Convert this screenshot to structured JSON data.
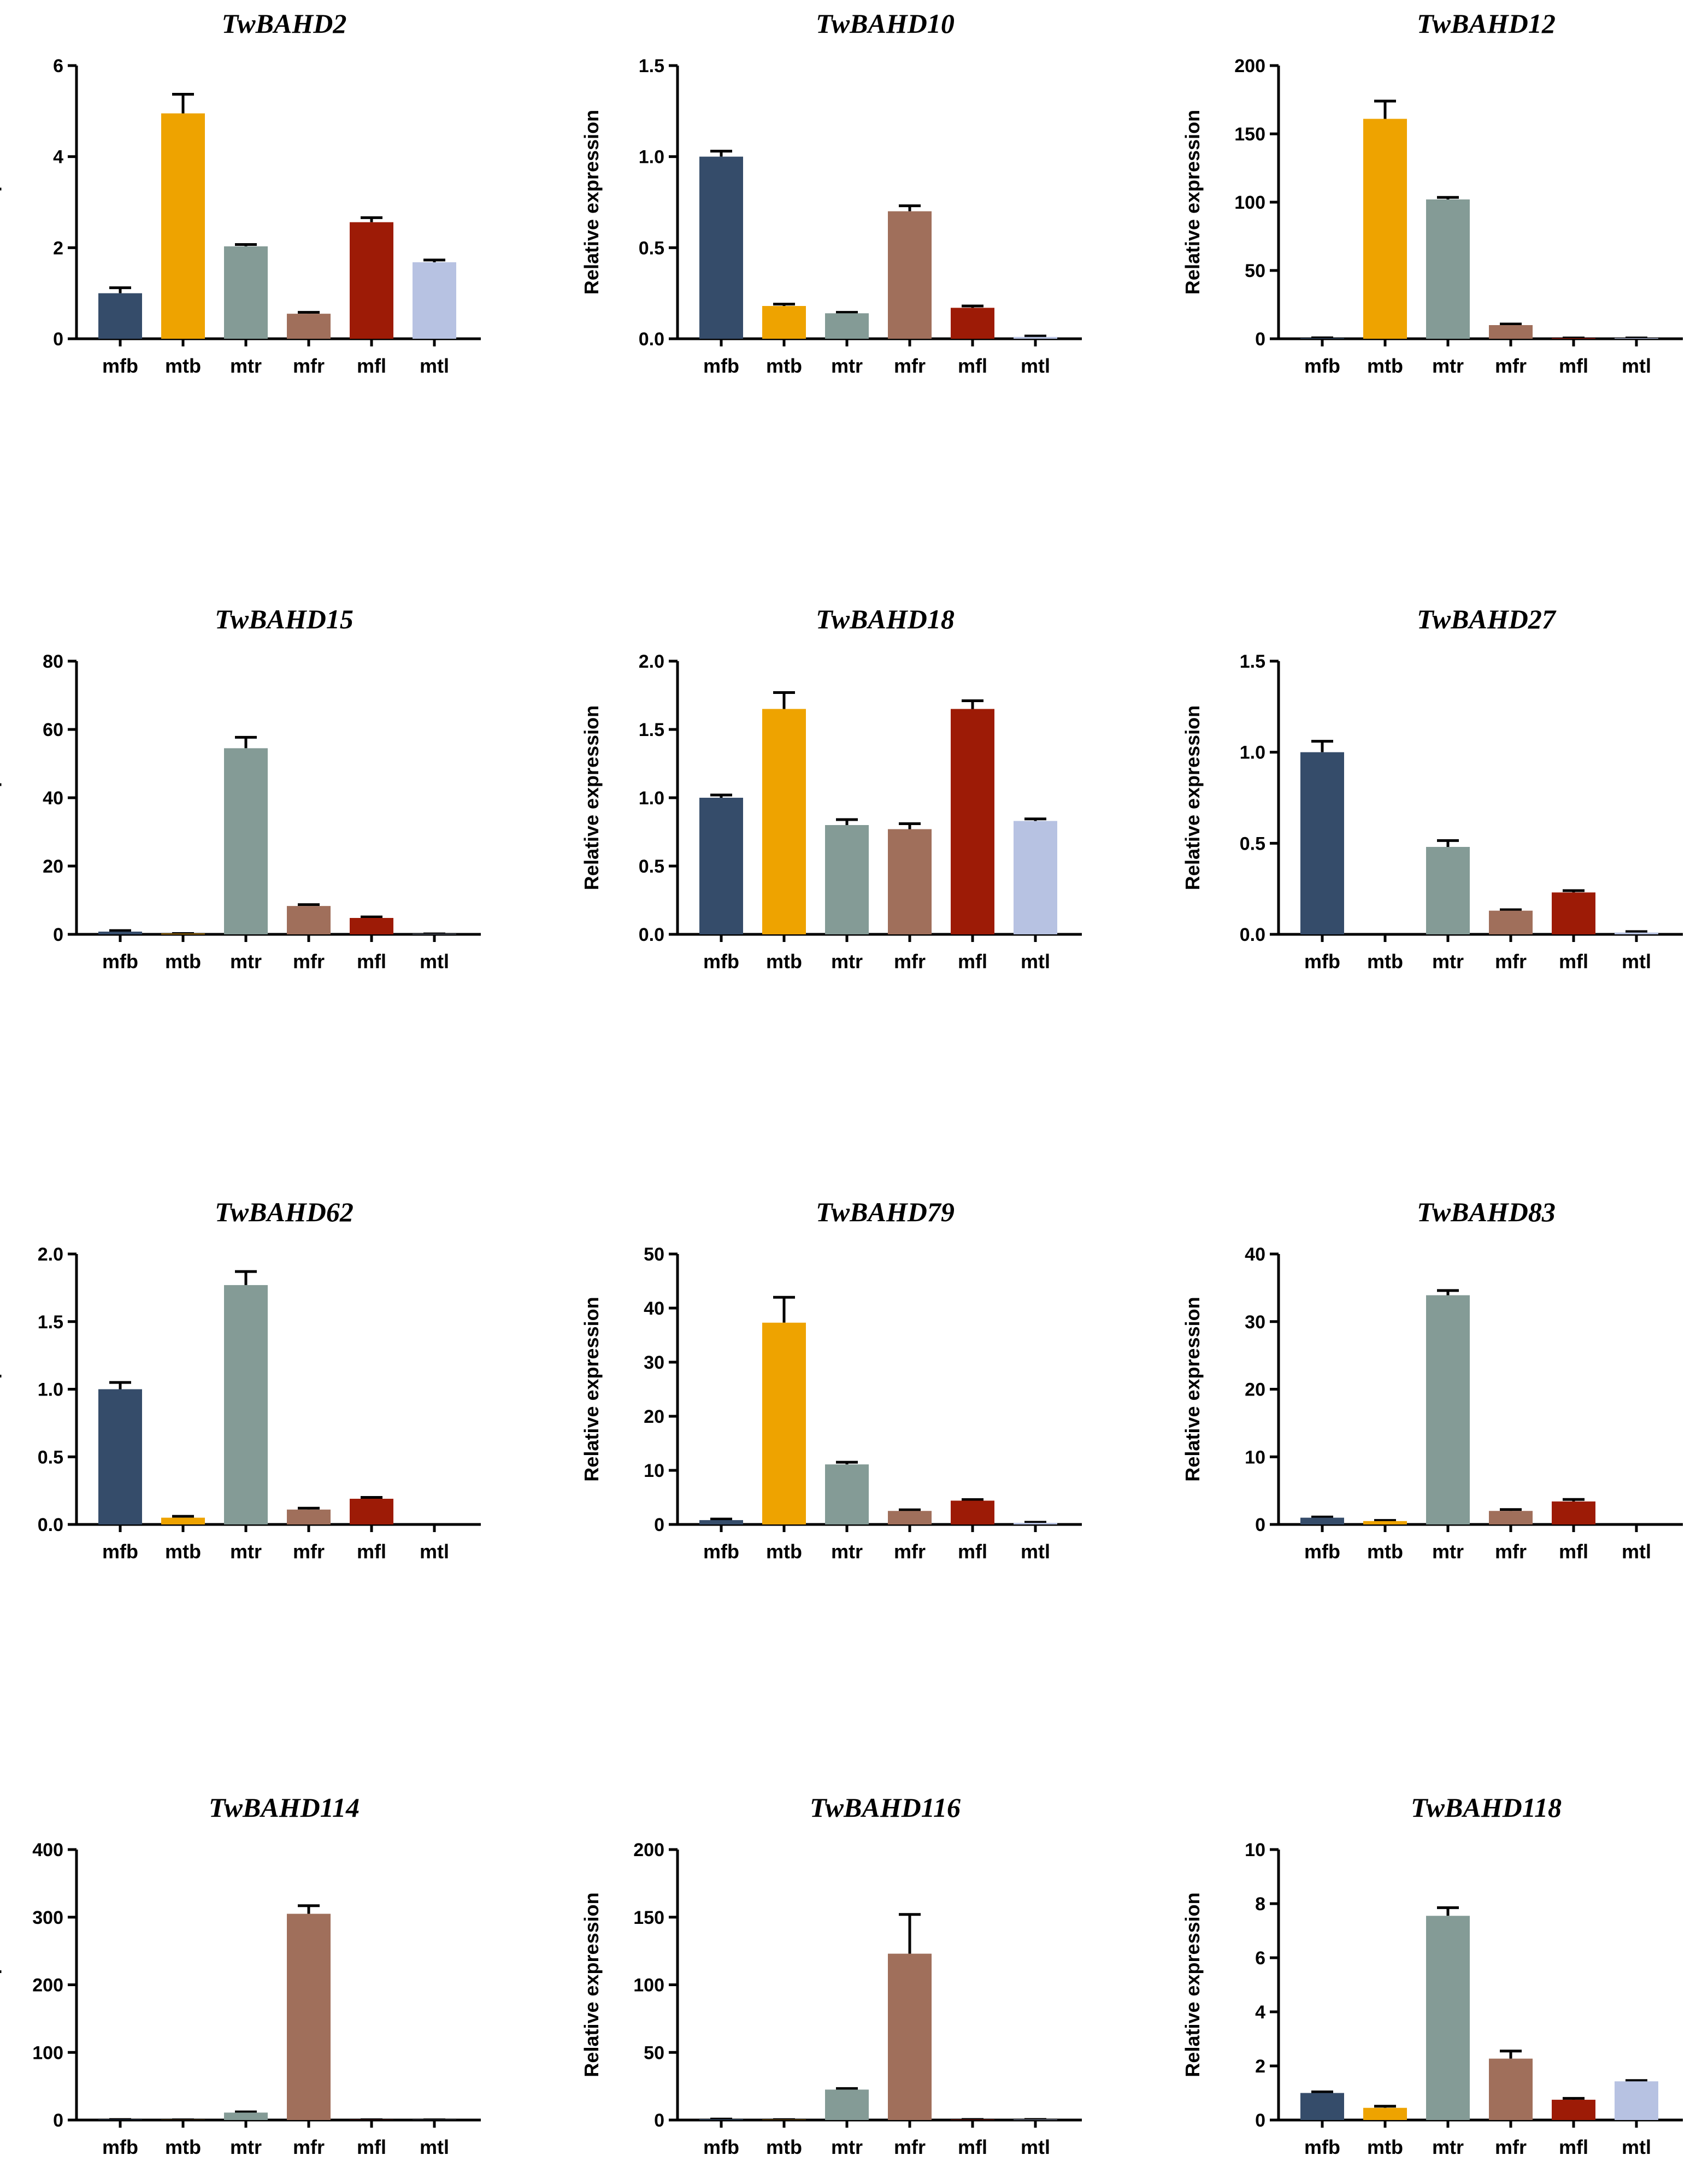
{
  "figure": {
    "panels": [
      {
        "colors": [
          "#354c6a",
          "#eea300",
          "#849b96",
          "#a06f5b",
          "#9d1b06",
          "#b7c2e2"
        ]
      }
    ]
  },
  "chart_data": [
    {
      "type": "bar",
      "title": "TwBAHD2",
      "xlabel": "",
      "ylabel": "Relative expression",
      "categories": [
        "mfb",
        "mtb",
        "mtr",
        "mfr",
        "mfl",
        "mtl"
      ],
      "values": [
        1.0,
        4.95,
        2.03,
        0.55,
        2.56,
        1.68
      ],
      "errors": [
        0.12,
        0.42,
        0.04,
        0.03,
        0.1,
        0.05
      ],
      "ylim": [
        0,
        6
      ],
      "yticks": [
        0,
        2,
        4,
        6
      ],
      "ytick_labels": [
        "0",
        "2",
        "4",
        "6"
      ]
    },
    {
      "type": "bar",
      "title": "TwBAHD10",
      "xlabel": "",
      "ylabel": "Relative expression",
      "categories": [
        "mfb",
        "mtb",
        "mtr",
        "mfr",
        "mfl",
        "mtl"
      ],
      "values": [
        1.0,
        0.18,
        0.14,
        0.7,
        0.17,
        0.01
      ],
      "errors": [
        0.03,
        0.01,
        0.005,
        0.03,
        0.01,
        0.005
      ],
      "ylim": [
        0,
        1.5
      ],
      "yticks": [
        0,
        0.5,
        1.0,
        1.5
      ],
      "ytick_labels": [
        "0.0",
        "0.5",
        "1.0",
        "1.5"
      ]
    },
    {
      "type": "bar",
      "title": "TwBAHD12",
      "xlabel": "",
      "ylabel": "Relative expression",
      "categories": [
        "mfb",
        "mtb",
        "mtr",
        "mfr",
        "mfl",
        "mtl"
      ],
      "values": [
        0.5,
        161,
        102,
        10,
        0.5,
        0.5
      ],
      "errors": [
        0.2,
        13,
        1.5,
        0.8,
        0.1,
        0.1
      ],
      "ylim": [
        0,
        200
      ],
      "yticks": [
        0,
        50,
        100,
        150,
        200
      ],
      "ytick_labels": [
        "0",
        "50",
        "100",
        "150",
        "200"
      ]
    },
    {
      "type": "bar",
      "title": "TwBAHD15",
      "xlabel": "",
      "ylabel": "Relative expression",
      "categories": [
        "mfb",
        "mtb",
        "mtr",
        "mfr",
        "mfl",
        "mtl"
      ],
      "values": [
        0.8,
        0.2,
        54.5,
        8.3,
        4.8,
        0.1
      ],
      "errors": [
        0.3,
        0.05,
        3.2,
        0.4,
        0.3,
        0.05
      ],
      "ylim": [
        0,
        80
      ],
      "yticks": [
        0,
        20,
        40,
        60,
        80
      ],
      "ytick_labels": [
        "0",
        "20",
        "40",
        "60",
        "80"
      ]
    },
    {
      "type": "bar",
      "title": "TwBAHD18",
      "xlabel": "",
      "ylabel": "Relative expression",
      "categories": [
        "mfb",
        "mtb",
        "mtr",
        "mfr",
        "mfl",
        "mtl"
      ],
      "values": [
        1.0,
        1.65,
        0.8,
        0.77,
        1.65,
        0.83
      ],
      "errors": [
        0.02,
        0.12,
        0.04,
        0.04,
        0.06,
        0.015
      ],
      "ylim": [
        0,
        2.0
      ],
      "yticks": [
        0,
        0.5,
        1.0,
        1.5,
        2.0
      ],
      "ytick_labels": [
        "0.0",
        "0.5",
        "1.0",
        "1.5",
        "2.0"
      ]
    },
    {
      "type": "bar",
      "title": "TwBAHD27",
      "xlabel": "",
      "ylabel": "Relative expression",
      "categories": [
        "mfb",
        "mtb",
        "mtr",
        "mfr",
        "mfl",
        "mtl"
      ],
      "values": [
        1.0,
        0.0,
        0.48,
        0.13,
        0.23,
        0.01
      ],
      "errors": [
        0.06,
        0.0,
        0.035,
        0.005,
        0.01,
        0.005
      ],
      "ylim": [
        0,
        1.5
      ],
      "yticks": [
        0,
        0.5,
        1.0,
        1.5
      ],
      "ytick_labels": [
        "0.0",
        "0.5",
        "1.0",
        "1.5"
      ]
    },
    {
      "type": "bar",
      "title": "TwBAHD62",
      "xlabel": "",
      "ylabel": "Relative expression",
      "categories": [
        "mfb",
        "mtb",
        "mtr",
        "mfr",
        "mfl",
        "mtl"
      ],
      "values": [
        1.0,
        0.05,
        1.77,
        0.11,
        0.19,
        0.0
      ],
      "errors": [
        0.05,
        0.01,
        0.1,
        0.01,
        0.01,
        0.0
      ],
      "ylim": [
        0,
        2.0
      ],
      "yticks": [
        0,
        0.5,
        1.0,
        1.5,
        2.0
      ],
      "ytick_labels": [
        "0.0",
        "0.5",
        "1.0",
        "1.5",
        "2.0"
      ]
    },
    {
      "type": "bar",
      "title": "TwBAHD79",
      "xlabel": "",
      "ylabel": "Relative expression",
      "categories": [
        "mfb",
        "mtb",
        "mtr",
        "mfr",
        "mfl",
        "mtl"
      ],
      "values": [
        0.8,
        37.3,
        11.1,
        2.5,
        4.4,
        0.3
      ],
      "errors": [
        0.2,
        4.7,
        0.4,
        0.2,
        0.2,
        0.1
      ],
      "ylim": [
        0,
        50
      ],
      "yticks": [
        0,
        10,
        20,
        30,
        40,
        50
      ],
      "ytick_labels": [
        "0",
        "10",
        "20",
        "30",
        "40",
        "50"
      ]
    },
    {
      "type": "bar",
      "title": "TwBAHD83",
      "xlabel": "",
      "ylabel": "Relative expression",
      "categories": [
        "mfb",
        "mtb",
        "mtr",
        "mfr",
        "mfl",
        "mtl"
      ],
      "values": [
        1.0,
        0.5,
        33.9,
        2.0,
        3.4,
        0.0
      ],
      "errors": [
        0.1,
        0.1,
        0.7,
        0.2,
        0.3,
        0.0
      ],
      "ylim": [
        0,
        40
      ],
      "yticks": [
        0,
        10,
        20,
        30,
        40
      ],
      "ytick_labels": [
        "0",
        "10",
        "20",
        "30",
        "40"
      ]
    },
    {
      "type": "bar",
      "title": "TwBAHD114",
      "xlabel": "",
      "ylabel": "Relative expression",
      "categories": [
        "mfb",
        "mtb",
        "mtr",
        "mfr",
        "mfl",
        "mtl"
      ],
      "values": [
        0.5,
        0.2,
        11,
        305,
        0.3,
        0.2
      ],
      "errors": [
        0.2,
        0.1,
        1.0,
        12,
        0.1,
        0.1
      ],
      "ylim": [
        0,
        400
      ],
      "yticks": [
        0,
        100,
        200,
        300,
        400
      ],
      "ytick_labels": [
        "0",
        "100",
        "200",
        "300",
        "400"
      ]
    },
    {
      "type": "bar",
      "title": "TwBAHD116",
      "xlabel": "",
      "ylabel": "Relative expression",
      "categories": [
        "mfb",
        "mtb",
        "mtr",
        "mfr",
        "mfl",
        "mtl"
      ],
      "values": [
        0.5,
        0.2,
        22.5,
        123,
        0.3,
        0.3
      ],
      "errors": [
        0.2,
        0.1,
        0.8,
        29,
        0.1,
        0.1
      ],
      "ylim": [
        0,
        200
      ],
      "yticks": [
        0,
        50,
        100,
        150,
        200
      ],
      "ytick_labels": [
        "0",
        "50",
        "100",
        "150",
        "200"
      ]
    },
    {
      "type": "bar",
      "title": "TwBAHD118",
      "xlabel": "",
      "ylabel": "Relative expression",
      "categories": [
        "mfb",
        "mtb",
        "mtr",
        "mfr",
        "mfl",
        "mtl"
      ],
      "values": [
        1.0,
        0.45,
        7.55,
        2.27,
        0.75,
        1.43
      ],
      "errors": [
        0.04,
        0.06,
        0.3,
        0.28,
        0.05,
        0.03
      ],
      "ylim": [
        0,
        10
      ],
      "yticks": [
        0,
        2,
        4,
        6,
        8,
        10
      ],
      "ytick_labels": [
        "0",
        "2",
        "4",
        "6",
        "8",
        "10"
      ]
    }
  ]
}
